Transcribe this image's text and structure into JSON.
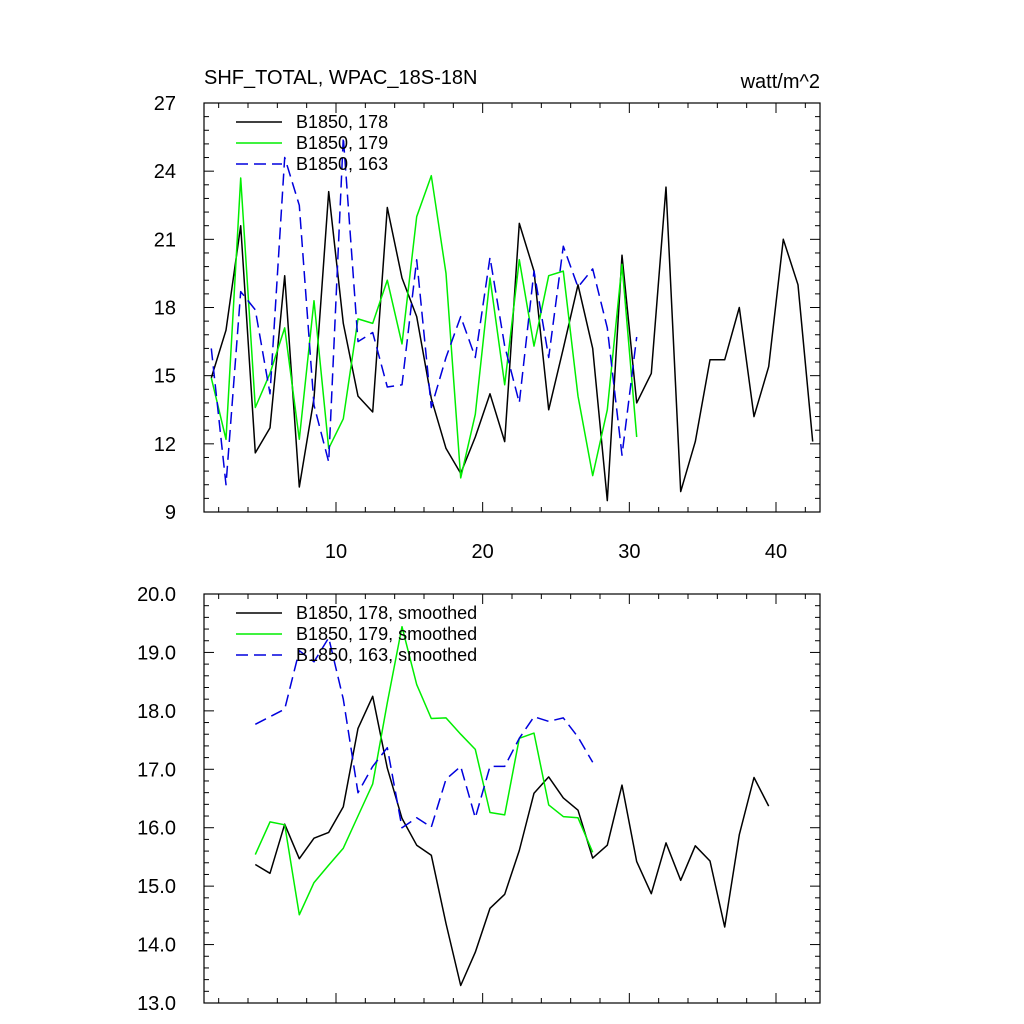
{
  "chart_data": [
    {
      "type": "line",
      "title": "SHF_TOTAL, WPAC_18S-18N",
      "units": "watt/m^2",
      "xlabel": "",
      "ylabel": "",
      "xlim": [
        1,
        43
      ],
      "ylim": [
        9,
        27
      ],
      "xticks": [
        10,
        20,
        30,
        40
      ],
      "yticks": [
        9,
        12,
        15,
        18,
        21,
        24,
        27
      ],
      "legend_position": "top-left",
      "series": [
        {
          "name": "B1850, 178",
          "color": "#000000",
          "dash": "solid",
          "x": [
            1.5,
            2.5,
            3.5,
            4.5,
            5.5,
            6.5,
            7.5,
            8.5,
            9.5,
            10.5,
            11.5,
            12.5,
            13.5,
            14.5,
            15.5,
            16.5,
            17.5,
            18.5,
            19.5,
            20.5,
            21.5,
            22.5,
            23.5,
            24.5,
            25.5,
            26.5,
            27.5,
            28.5,
            29.5,
            30.5,
            31.5,
            32.5,
            33.5,
            34.5,
            35.5,
            36.5,
            37.5,
            38.5,
            39.5,
            40.5,
            41.5,
            42.5
          ],
          "values": [
            14.9,
            17.0,
            21.6,
            11.6,
            12.7,
            19.4,
            10.1,
            14.0,
            23.1,
            17.3,
            14.1,
            13.4,
            22.4,
            19.3,
            17.6,
            14.0,
            11.8,
            10.7,
            12.3,
            14.2,
            12.1,
            21.7,
            19.6,
            13.5,
            16.2,
            19.0,
            16.2,
            9.5,
            20.3,
            13.8,
            15.1,
            23.3,
            9.9,
            12.1,
            15.7,
            15.7,
            18.0,
            13.2,
            15.4,
            21.0,
            19.0,
            12.1
          ]
        },
        {
          "name": "B1850, 179",
          "color": "#00ee00",
          "dash": "solid",
          "x": [
            1.5,
            2.5,
            3.5,
            4.5,
            5.5,
            6.5,
            7.5,
            8.5,
            9.5,
            10.5,
            11.5,
            12.5,
            13.5,
            14.5,
            15.5,
            16.5,
            17.5,
            18.5,
            19.5,
            20.5,
            21.5,
            22.5,
            23.5,
            24.5,
            25.5,
            26.5,
            27.5,
            28.5,
            29.5,
            30.5
          ],
          "values": [
            14.9,
            12.2,
            23.7,
            13.6,
            15.1,
            17.1,
            12.2,
            18.3,
            11.8,
            13.1,
            17.5,
            17.3,
            19.2,
            16.4,
            22.0,
            23.8,
            19.5,
            10.5,
            13.3,
            19.3,
            14.6,
            20.1,
            16.3,
            19.4,
            19.6,
            14.1,
            10.6,
            13.5,
            19.9,
            12.3
          ]
        },
        {
          "name": "B1850, 163",
          "color": "#0000dd",
          "dash": "dashed",
          "x": [
            1.5,
            2.5,
            3.5,
            4.5,
            5.5,
            6.5,
            7.5,
            8.5,
            9.5,
            10.5,
            11.5,
            12.5,
            13.5,
            14.5,
            15.5,
            16.5,
            17.5,
            18.5,
            19.5,
            20.5,
            21.5,
            22.5,
            23.5,
            24.5,
            25.5,
            26.5,
            27.5,
            28.5,
            29.5,
            30.5
          ],
          "values": [
            16.2,
            10.2,
            18.7,
            17.9,
            14.2,
            24.6,
            22.5,
            13.7,
            11.2,
            25.5,
            16.5,
            16.9,
            14.5,
            14.6,
            20.1,
            13.6,
            15.8,
            17.6,
            15.8,
            20.2,
            16.3,
            13.8,
            19.6,
            15.8,
            20.7,
            18.9,
            19.7,
            17.1,
            11.5,
            16.7
          ]
        }
      ]
    },
    {
      "type": "line",
      "title": "",
      "xlabel": "",
      "ylabel": "",
      "xlim": [
        1,
        43
      ],
      "ylim": [
        13.0,
        20.0
      ],
      "xticks": [
        10,
        20,
        30,
        40
      ],
      "yticks": [
        "13.0",
        "14.0",
        "15.0",
        "16.0",
        "17.0",
        "18.0",
        "19.0",
        "20.0"
      ],
      "legend_position": "top-left",
      "series": [
        {
          "name": "B1850, 178, smoothed",
          "color": "#000000",
          "dash": "solid",
          "x": [
            4.5,
            5.5,
            6.5,
            7.5,
            8.5,
            9.5,
            10.5,
            11.5,
            12.5,
            13.5,
            14.5,
            15.5,
            16.5,
            17.5,
            18.5,
            19.5,
            20.5,
            21.5,
            22.5,
            23.5,
            24.5,
            25.5,
            26.5,
            27.5,
            28.5,
            29.5,
            30.5,
            31.5,
            32.5,
            33.5,
            34.5,
            35.5,
            36.5,
            37.5,
            38.5,
            39.5
          ],
          "values": [
            15.37,
            15.22,
            16.06,
            15.47,
            15.82,
            15.92,
            16.36,
            17.7,
            18.25,
            17.02,
            16.16,
            15.7,
            15.53,
            14.36,
            13.3,
            13.87,
            14.62,
            14.86,
            15.61,
            16.59,
            16.87,
            16.51,
            16.3,
            15.48,
            15.7,
            16.73,
            15.42,
            14.87,
            15.74,
            15.1,
            15.69,
            15.43,
            14.3,
            15.88,
            16.86,
            16.37
          ]
        },
        {
          "name": "B1850, 179, smoothed",
          "color": "#00ee00",
          "dash": "solid",
          "x": [
            4.5,
            5.5,
            6.5,
            7.5,
            8.5,
            9.5,
            10.5,
            11.5,
            12.5,
            13.5,
            14.5,
            15.5,
            16.5,
            17.5,
            18.5,
            19.5,
            20.5,
            21.5,
            22.5,
            23.5,
            24.5,
            25.5,
            26.5,
            27.5
          ],
          "values": [
            15.54,
            16.1,
            16.05,
            14.51,
            15.06,
            15.36,
            15.65,
            16.2,
            16.75,
            18.14,
            19.44,
            18.45,
            17.87,
            17.88,
            17.6,
            17.34,
            16.26,
            16.22,
            17.53,
            17.62,
            16.39,
            16.19,
            16.17,
            15.58
          ]
        },
        {
          "name": "B1850, 163, smoothed",
          "color": "#0000dd",
          "dash": "dashed",
          "x": [
            4.5,
            5.5,
            6.5,
            7.5,
            8.5,
            9.5,
            10.5,
            11.5,
            12.5,
            13.5,
            14.5,
            15.5,
            16.5,
            17.5,
            18.5,
            19.5,
            20.5,
            21.5,
            22.5,
            23.5,
            24.5,
            25.5,
            26.5,
            27.5
          ],
          "values": [
            17.77,
            17.9,
            18.03,
            19.03,
            18.84,
            19.25,
            18.2,
            16.6,
            17.05,
            17.37,
            16.0,
            16.17,
            16.01,
            16.83,
            17.05,
            16.17,
            17.05,
            17.05,
            17.53,
            17.9,
            17.82,
            17.88,
            17.55,
            17.12
          ]
        }
      ]
    }
  ]
}
